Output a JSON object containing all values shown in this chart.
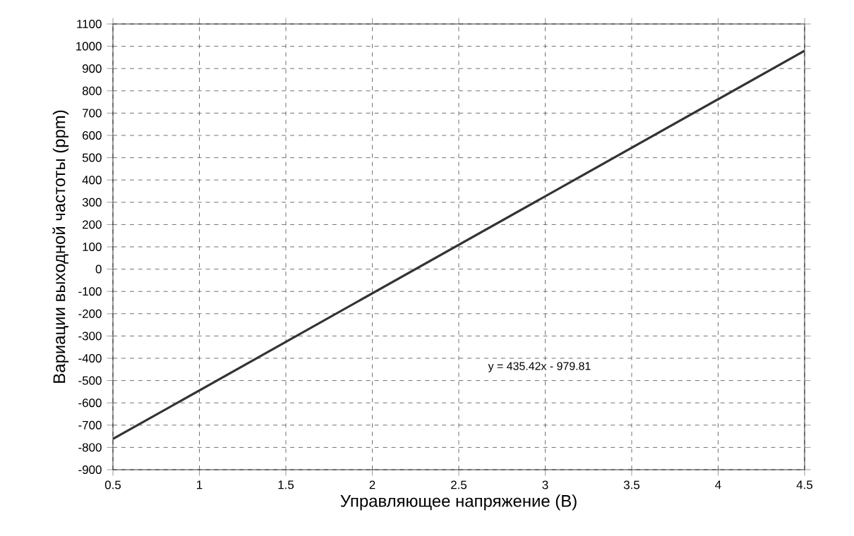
{
  "chart_data": {
    "type": "line",
    "xlabel": "Управляющее напряжение (В)",
    "ylabel": "Вариации выходной частоты (ppm)",
    "x": [
      0.5,
      4.5
    ],
    "values": [
      -762,
      980
    ],
    "color": "#333333",
    "xlim": [
      0.5,
      4.5
    ],
    "ylim": [
      -900,
      1100
    ],
    "xticks": [
      0.5,
      1,
      1.5,
      2,
      2.5,
      3,
      3.5,
      4,
      4.5
    ],
    "yticks": [
      -900,
      -800,
      -700,
      -600,
      -500,
      -400,
      -300,
      -200,
      -100,
      0,
      100,
      200,
      300,
      400,
      500,
      600,
      700,
      800,
      900,
      1000,
      1100
    ],
    "grid": true,
    "annotations": [
      "y = 435.42x - 979.81"
    ]
  }
}
